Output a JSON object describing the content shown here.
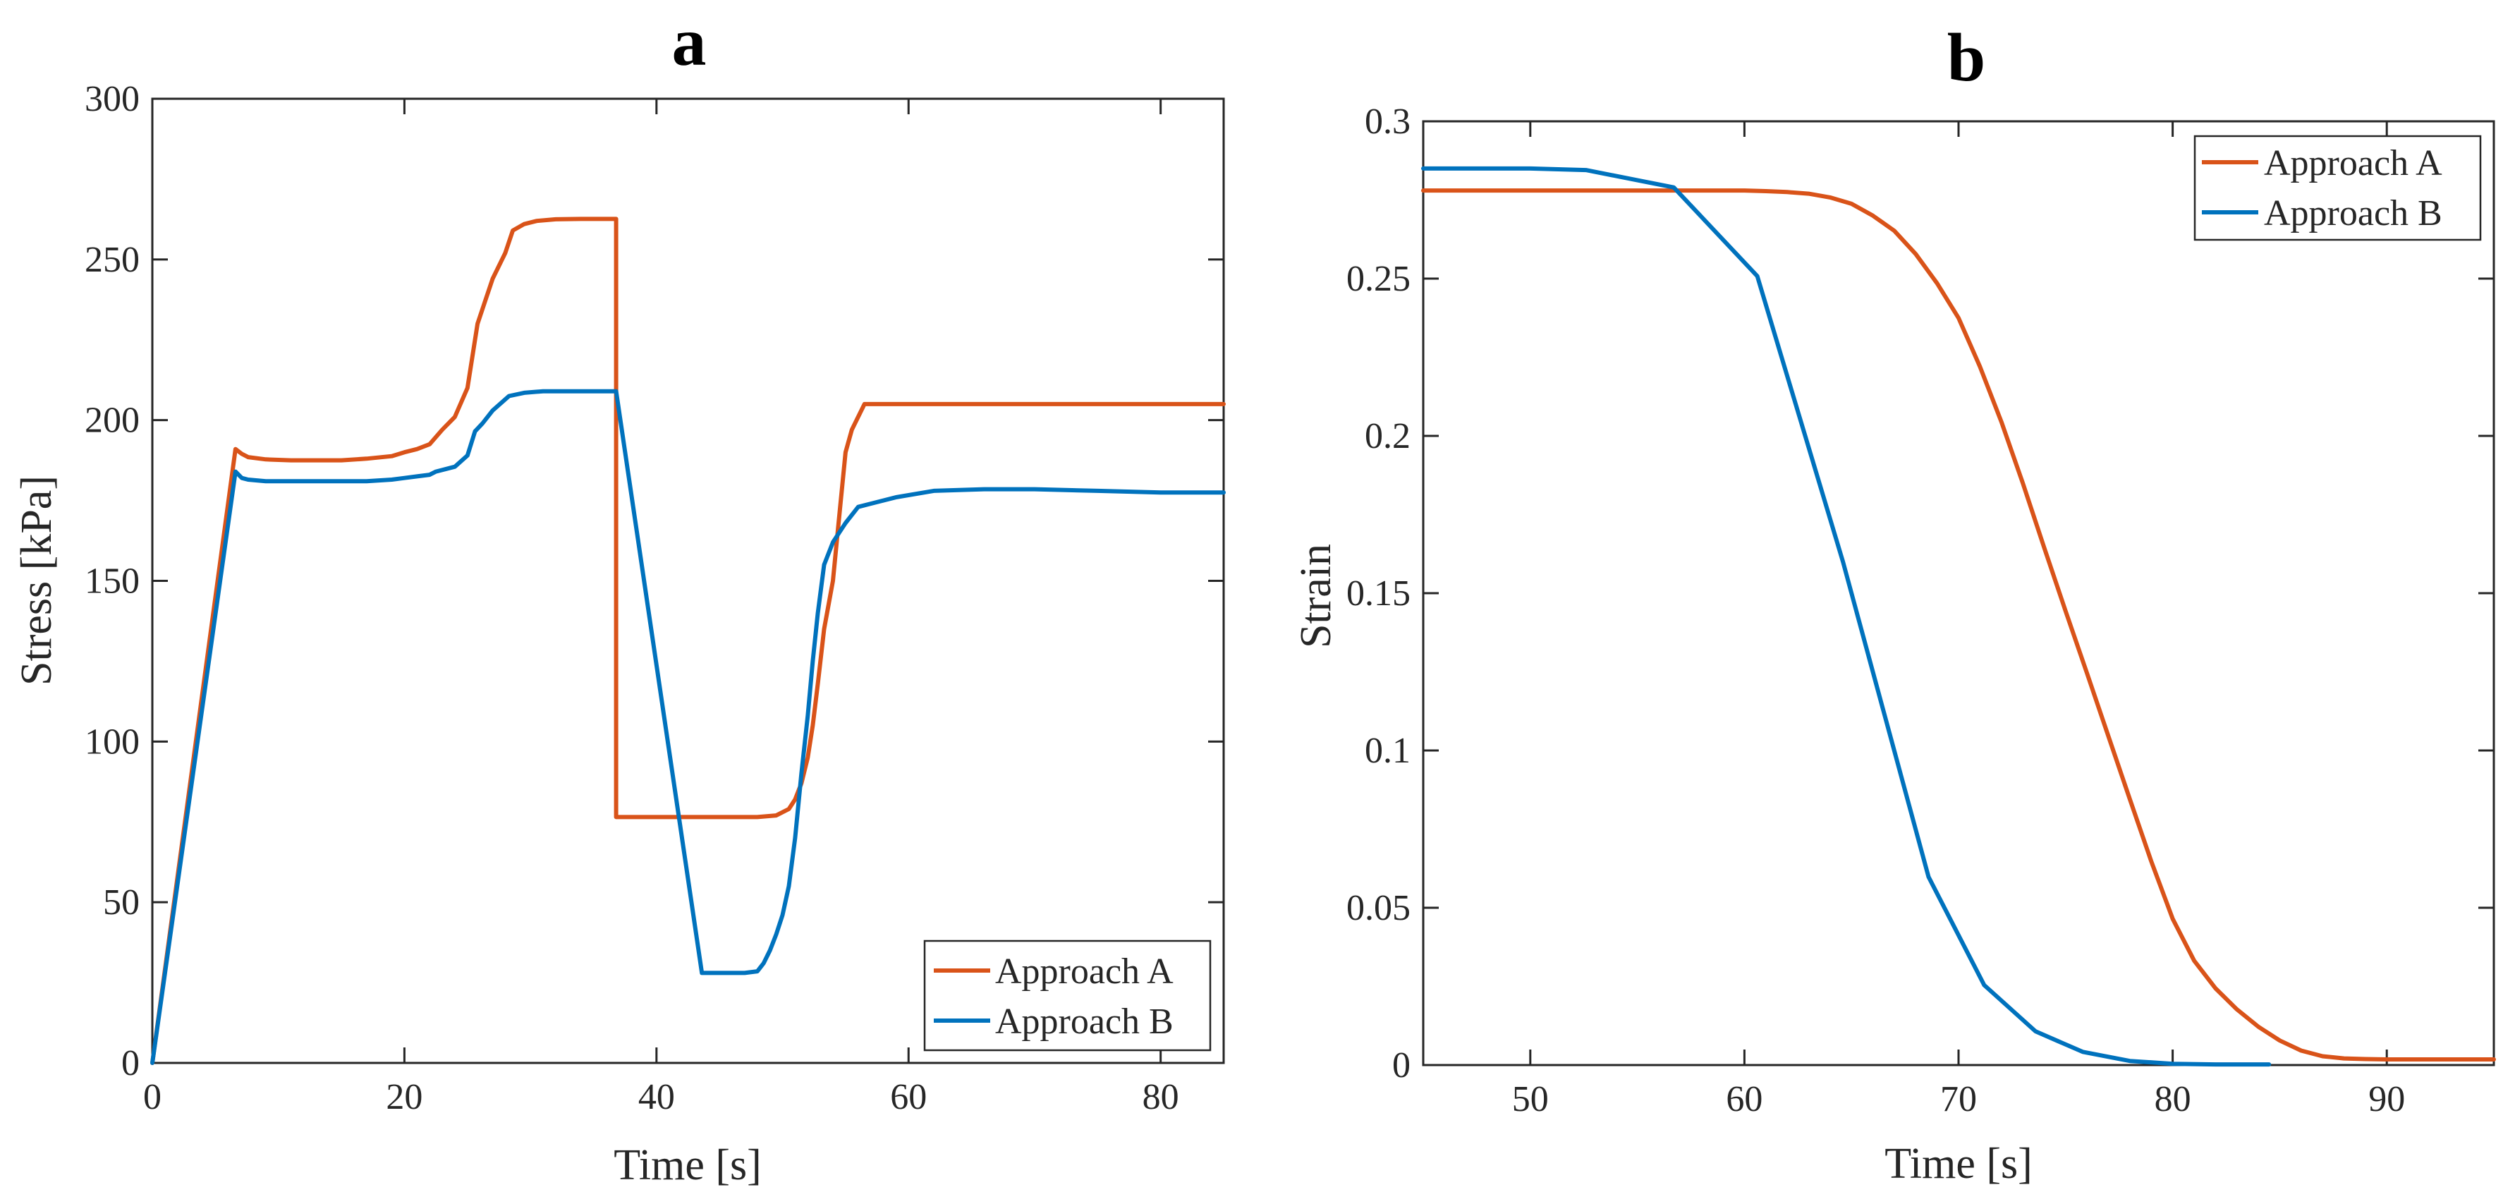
{
  "chart_data": [
    {
      "type": "line",
      "panel_label": "a",
      "xlabel": "Time [s]",
      "ylabel": "Stress [kPa]",
      "xlim": [
        0,
        85
      ],
      "ylim": [
        0,
        300
      ],
      "xticks": [
        0,
        20,
        40,
        60,
        80
      ],
      "yticks": [
        0,
        50,
        100,
        150,
        200,
        250,
        300
      ],
      "xtick_labels": [
        "0",
        "20",
        "40",
        "60",
        "80"
      ],
      "ytick_labels": [
        "0",
        "50",
        "100",
        "150",
        "200",
        "250",
        "300"
      ],
      "legend_position": "bottom-right",
      "series": [
        {
          "name": "Approach A",
          "color": "#D95319",
          "x": [
            0,
            6.6,
            7.1,
            7.6,
            9,
            11,
            13,
            15,
            17,
            19,
            20,
            21,
            22,
            23,
            24,
            25,
            25.8,
            26.4,
            27,
            28,
            28.6,
            29.5,
            30.5,
            32,
            34,
            36.8,
            36.8,
            37,
            39,
            42,
            45,
            48,
            49.5,
            50.5,
            51,
            51.5,
            52,
            52.4,
            52.8,
            53.3,
            54,
            54.5,
            55,
            55.5,
            56.5,
            58,
            62,
            70,
            78,
            85
          ],
          "y": [
            0,
            191,
            189.5,
            188.5,
            187.8,
            187.5,
            187.5,
            187.5,
            188,
            188.8,
            190,
            191,
            192.5,
            197,
            201,
            210,
            230,
            237,
            244,
            252,
            259,
            261,
            262,
            262.5,
            262.6,
            262.6,
            76.5,
            76.5,
            76.5,
            76.5,
            76.5,
            76.5,
            77,
            79,
            82,
            87,
            95,
            105,
            118,
            135,
            150,
            170,
            190,
            197,
            205,
            205,
            205,
            205,
            205,
            205
          ]
        },
        {
          "name": "Approach B",
          "color": "#0072BD",
          "x": [
            0,
            6.6,
            7.1,
            7.6,
            9,
            11,
            13,
            15,
            17,
            19,
            20,
            21,
            22,
            22.5,
            24,
            25,
            25.6,
            26.2,
            27,
            28.3,
            29.5,
            31,
            33,
            35,
            36.8,
            43.6,
            45,
            47,
            48,
            48.5,
            49,
            49.5,
            50,
            50.5,
            51,
            51.5,
            52,
            52.4,
            52.8,
            53.3,
            54,
            54.5,
            55,
            56,
            57,
            59,
            62,
            66,
            70,
            75,
            80,
            85
          ],
          "y": [
            0,
            184,
            182,
            181.5,
            181,
            181,
            181,
            181,
            181,
            181.5,
            182,
            182.5,
            183,
            184,
            185.5,
            189,
            196.5,
            199,
            203,
            207.5,
            208.5,
            209,
            209,
            209,
            209,
            28,
            28,
            28,
            28.5,
            31,
            35,
            40,
            46,
            55,
            70,
            90,
            108,
            125,
            140,
            155,
            162,
            165,
            168,
            173,
            174,
            176,
            178,
            178.5,
            178.5,
            178,
            177.5,
            177.5
          ]
        }
      ]
    },
    {
      "type": "line",
      "panel_label": "b",
      "xlabel": "Time [s]",
      "ylabel": "Strain",
      "xlim": [
        45,
        95
      ],
      "ylim": [
        0,
        0.3
      ],
      "xticks": [
        50,
        60,
        70,
        80,
        90
      ],
      "yticks": [
        0,
        0.05,
        0.1,
        0.15,
        0.2,
        0.25,
        0.3
      ],
      "xtick_labels": [
        "50",
        "60",
        "70",
        "80",
        "90"
      ],
      "ytick_labels": [
        "0",
        "0.05",
        "0.1",
        "0.15",
        "0.2",
        "0.25",
        "0.3"
      ],
      "legend_position": "top-right",
      "series": [
        {
          "name": "Approach A",
          "color": "#D95319",
          "x": [
            45,
            50,
            55,
            60,
            61,
            62,
            63,
            64,
            65,
            66,
            67,
            68,
            69,
            70,
            71,
            72,
            73,
            74,
            75,
            76,
            77,
            78,
            79,
            80,
            81,
            82,
            83,
            84,
            85,
            86,
            87,
            88,
            89,
            90,
            92,
            95
          ],
          "y": [
            0.278,
            0.278,
            0.278,
            0.278,
            0.2778,
            0.2775,
            0.277,
            0.2758,
            0.2738,
            0.27,
            0.2652,
            0.2578,
            0.2485,
            0.2375,
            0.222,
            0.2045,
            0.185,
            0.1645,
            0.1443,
            0.1245,
            0.1045,
            0.0845,
            0.0648,
            0.0465,
            0.0332,
            0.0244,
            0.0177,
            0.0122,
            0.0078,
            0.0046,
            0.0028,
            0.0021,
            0.0019,
            0.0018,
            0.0018,
            0.0018
          ]
        },
        {
          "name": "Approach B",
          "color": "#0072BD",
          "x": [
            45,
            50,
            52.6,
            56.7,
            60.6,
            64.6,
            68.6,
            71.2,
            73.6,
            75.8,
            78,
            80,
            82,
            84.5
          ],
          "y": [
            0.285,
            0.285,
            0.2845,
            0.279,
            0.2508,
            0.16,
            0.0598,
            0.0254,
            0.0107,
            0.0042,
            0.0013,
            0.0004,
            0.0002,
            0.0002
          ]
        }
      ]
    }
  ]
}
